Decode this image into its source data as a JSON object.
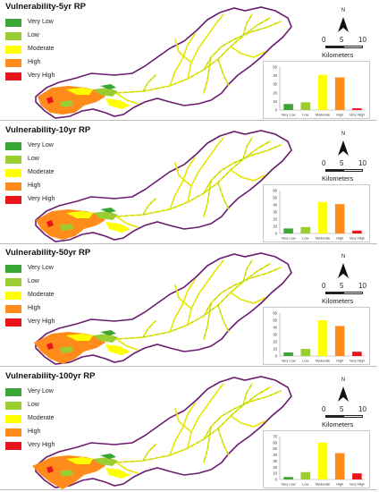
{
  "colors": {
    "very_low": "#3aa635",
    "low": "#9acd32",
    "moderate": "#ffff00",
    "high": "#ff8c1a",
    "very_high": "#e8161c",
    "boundary": "#6a1b6e",
    "stream_yellow": "#e6e600",
    "stream_green": "#8fc63c"
  },
  "legend_labels": [
    "Very Low",
    "Low",
    "Moderate",
    "High",
    "Very High"
  ],
  "north_letter": "N",
  "scale": {
    "ticks": [
      "0",
      "5",
      "10"
    ],
    "unit": "Kilometers"
  },
  "panels": [
    {
      "title": "Vulnerability-5yr RP"
    },
    {
      "title": "Vulnerability-10yr RP"
    },
    {
      "title": "Vulnerability-50yr RP"
    },
    {
      "title": "Vulnerability-100yr RP"
    }
  ],
  "chart_data": [
    {
      "type": "bar",
      "categories": [
        "Very Low",
        "Low",
        "Moderate",
        "High",
        "Very High"
      ],
      "values": [
        7,
        9,
        41,
        38,
        2
      ],
      "ylim": [
        0,
        50
      ],
      "yticks": [
        "0",
        "10",
        "20",
        "30",
        "40",
        "50"
      ],
      "grid": false
    },
    {
      "type": "bar",
      "categories": [
        "Very Low",
        "Low",
        "Moderate",
        "High",
        "Very High"
      ],
      "values": [
        7,
        9,
        44,
        41,
        4
      ],
      "ylim": [
        0,
        60
      ],
      "yticks": [
        "0",
        "10",
        "20",
        "30",
        "40",
        "50",
        "60"
      ],
      "grid": false
    },
    {
      "type": "bar",
      "categories": [
        "Very Low",
        "Low",
        "Moderate",
        "High",
        "Very High"
      ],
      "values": [
        5,
        10,
        50,
        42,
        6
      ],
      "ylim": [
        0,
        60
      ],
      "yticks": [
        "0",
        "10",
        "20",
        "30",
        "40",
        "50",
        "60"
      ],
      "grid": false
    },
    {
      "type": "bar",
      "categories": [
        "Very Low",
        "Low",
        "Moderate",
        "High",
        "Very High"
      ],
      "values": [
        4,
        12,
        60,
        43,
        10
      ],
      "ylim": [
        0,
        70
      ],
      "yticks": [
        "0",
        "10",
        "20",
        "30",
        "40",
        "50",
        "60",
        "70"
      ],
      "grid": false
    }
  ]
}
